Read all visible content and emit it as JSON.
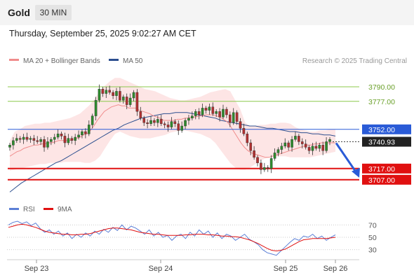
{
  "header": {
    "symbol": "Gold",
    "timeframe": "30 MIN",
    "datetime": "Thursday, September 25, 2025 9:02:27 AM CET"
  },
  "legend": {
    "ma20_label": "MA 20 + Bollinger Bands",
    "ma50_label": "MA 50",
    "copyright": "Research © 2025 Trading Central"
  },
  "rsi_legend": {
    "rsi_label": "RSI",
    "ma9_label": "9MA"
  },
  "colors": {
    "ma20": "#f08c8c",
    "ma50": "#2c4f8f",
    "bb_fill": "#fde0e0",
    "up": "#2e8b2e",
    "down": "#b03030",
    "support": "#e01010",
    "resistance": "#8cc84b",
    "pivot": "#2a5bd7",
    "current": "#222222",
    "arrow": "#2a5bd7",
    "rsi": "#5b7fd6"
  },
  "chart_data": [
    {
      "type": "candlestick",
      "title": "Gold 30 MIN",
      "x_ticks": [
        "Sep 23",
        "Sep 24",
        "Sep 25",
        "Sep 26"
      ],
      "y_range": [
        3690,
        3805
      ],
      "indicators": [
        "MA 20 + Bollinger Bands",
        "MA 50"
      ],
      "levels": [
        {
          "value": 3790.0,
          "label": "3790.00",
          "kind": "resistance"
        },
        {
          "value": 3777.0,
          "label": "3777.00",
          "kind": "resistance"
        },
        {
          "value": 3752.0,
          "label": "3752.00",
          "kind": "pivot"
        },
        {
          "value": 3740.93,
          "label": "3740.93",
          "kind": "current"
        },
        {
          "value": 3717.0,
          "label": "3717.00",
          "kind": "support"
        },
        {
          "value": 3707.0,
          "label": "3707.00",
          "kind": "support"
        }
      ],
      "forecast": {
        "from": 3741,
        "to": 3707,
        "direction": "down"
      },
      "close": [
        3738,
        3742,
        3744,
        3743,
        3745,
        3743,
        3744,
        3742,
        3741,
        3743,
        3736,
        3741,
        3743,
        3745,
        3748,
        3746,
        3740,
        3744,
        3742,
        3745,
        3747,
        3750,
        3748,
        3756,
        3764,
        3778,
        3788,
        3784,
        3787,
        3785,
        3782,
        3786,
        3778,
        3781,
        3774,
        3780,
        3785,
        3768,
        3762,
        3758,
        3757,
        3760,
        3758,
        3761,
        3757,
        3756,
        3754,
        3759,
        3757,
        3751,
        3755,
        3760,
        3762,
        3764,
        3768,
        3765,
        3771,
        3769,
        3772,
        3766,
        3768,
        3763,
        3770,
        3765,
        3758,
        3767,
        3759,
        3753,
        3748,
        3740,
        3733,
        3727,
        3722,
        3716,
        3718,
        3717,
        3726,
        3731,
        3734,
        3737,
        3740,
        3736,
        3743,
        3746,
        3741,
        3739,
        3736,
        3733,
        3737,
        3735,
        3738,
        3733,
        3741,
        3743
      ],
      "ma20": [
        3728,
        3730,
        3732,
        3733,
        3735,
        3736,
        3737,
        3738,
        3738,
        3739,
        3739,
        3740,
        3740,
        3741,
        3742,
        3742,
        3742,
        3742,
        3743,
        3744,
        3745,
        3747,
        3748,
        3751,
        3755,
        3760,
        3764,
        3768,
        3770,
        3772,
        3773,
        3774,
        3773,
        3773,
        3771,
        3771,
        3771,
        3769,
        3768,
        3767,
        3766,
        3764,
        3763,
        3762,
        3760,
        3760,
        3760,
        3760,
        3761,
        3761,
        3762,
        3762,
        3763,
        3763,
        3764,
        3764,
        3765,
        3765,
        3765,
        3764,
        3763,
        3761,
        3759,
        3755,
        3750,
        3745,
        3740,
        3736,
        3733,
        3731,
        3730,
        3729,
        3728,
        3727,
        3727,
        3728,
        3729,
        3730,
        3731,
        3732,
        3733,
        3734,
        3735,
        3736,
        3737,
        3738,
        3738,
        3739,
        3739,
        3740,
        3740,
        3740,
        3740,
        3740
      ],
      "bb_upper": [
        3742,
        3750,
        3752,
        3755,
        3756,
        3757,
        3757,
        3758,
        3758,
        3759,
        3760,
        3761,
        3762,
        3764,
        3766,
        3770,
        3774,
        3780,
        3786,
        3791,
        3795,
        3798,
        3798,
        3796,
        3794,
        3792,
        3790,
        3788,
        3787,
        3786,
        3784,
        3782,
        3780,
        3779,
        3778,
        3778,
        3779,
        3780,
        3781,
        3783,
        3785,
        3786,
        3787,
        3788,
        3786,
        3778,
        3770,
        3758,
        3755,
        3755,
        3756,
        3756,
        3757,
        3757,
        3758,
        3758,
        3757,
        3754,
        3752,
        3751,
        3750,
        3750,
        3751,
        3751,
        3752,
        3752
      ],
      "bb_lower": [
        3715,
        3716,
        3717,
        3718,
        3719,
        3720,
        3721,
        3721,
        3722,
        3722,
        3722,
        3723,
        3723,
        3723,
        3723,
        3722,
        3722,
        3724,
        3728,
        3735,
        3742,
        3748,
        3750,
        3748,
        3746,
        3745,
        3744,
        3744,
        3744,
        3745,
        3746,
        3747,
        3749,
        3750,
        3751,
        3751,
        3750,
        3749,
        3748,
        3746,
        3744,
        3740,
        3734,
        3728,
        3722,
        3718,
        3716,
        3716,
        3718,
        3721,
        3724,
        3726,
        3727,
        3728,
        3728,
        3728,
        3727,
        3727,
        3727,
        3727,
        3727,
        3728,
        3729,
        3730,
        3731,
        3732
      ],
      "ma50": [
        3696,
        3700,
        3704,
        3707,
        3710,
        3713,
        3716,
        3719,
        3722,
        3724,
        3727,
        3730,
        3733,
        3736,
        3739,
        3742,
        3745,
        3748,
        3751,
        3753,
        3756,
        3758,
        3760,
        3762,
        3763,
        3764,
        3765,
        3766,
        3766,
        3767,
        3767,
        3767,
        3766,
        3765,
        3764,
        3763,
        3762,
        3760,
        3759,
        3758,
        3757,
        3756,
        3755,
        3755,
        3754,
        3753,
        3753,
        3752,
        3751,
        3750,
        3750,
        3749,
        3749,
        3748,
        3748,
        3747,
        3747,
        3746
      ]
    },
    {
      "type": "line",
      "title": "RSI",
      "y_ticks": [
        70,
        50,
        30
      ],
      "y_range": [
        15,
        85
      ],
      "series": [
        {
          "name": "RSI",
          "values": [
            70,
            74,
            76,
            72,
            75,
            69,
            73,
            64,
            58,
            62,
            55,
            60,
            52,
            57,
            48,
            55,
            50,
            57,
            52,
            60,
            55,
            63,
            58,
            66,
            61,
            70,
            62,
            68,
            65,
            60,
            55,
            62,
            52,
            58,
            50,
            53,
            45,
            52,
            55,
            48,
            58,
            52,
            62,
            55,
            60,
            50,
            57,
            48,
            55,
            52,
            45,
            50,
            55,
            47,
            43,
            38,
            30,
            25,
            23,
            21,
            28,
            35,
            42,
            48,
            45,
            52,
            50,
            55,
            48,
            52,
            45,
            50,
            54
          ]
        },
        {
          "name": "9MA",
          "values": [
            66,
            68,
            70,
            71,
            70,
            68,
            66,
            63,
            60,
            58,
            57,
            56,
            55,
            55,
            54,
            54,
            55,
            55,
            56,
            58,
            60,
            62,
            64,
            65,
            65,
            64,
            63,
            62,
            60,
            58,
            57,
            56,
            55,
            55,
            54,
            53,
            53,
            53,
            53,
            54,
            54,
            55,
            55,
            55,
            54,
            54,
            53,
            52,
            52,
            51,
            51,
            50,
            48,
            46,
            43,
            40,
            36,
            32,
            29,
            28,
            29,
            31,
            35,
            39,
            43,
            46,
            47,
            48,
            48,
            48,
            48,
            49,
            50
          ]
        }
      ]
    }
  ]
}
